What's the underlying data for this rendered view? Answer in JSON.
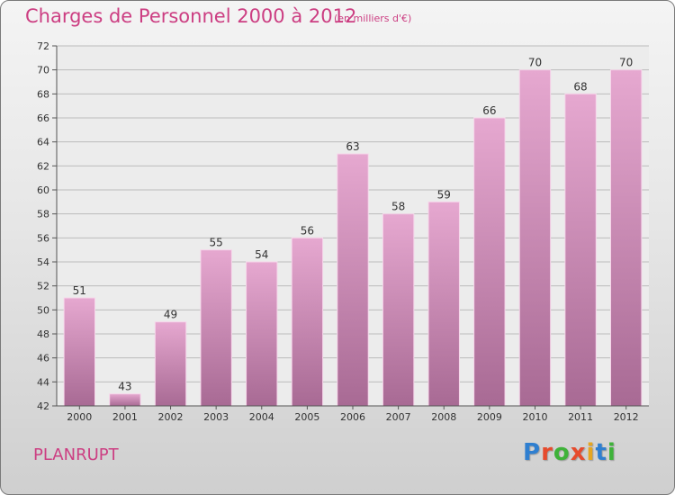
{
  "title": "Charges de Personnel 2000 à 2012",
  "unit_note": "(en milliers d'€)",
  "commune": "PLANRUPT",
  "logo": {
    "text": "Proxiti",
    "letter_colors": [
      "#2f7fd0",
      "#e64b2d",
      "#3fb23a",
      "#e64b2d",
      "#e6a620",
      "#2f7fd0",
      "#3fb23a"
    ]
  },
  "colors": {
    "bar_top": "#e6a8d0",
    "bar_bottom": "#a86a94",
    "accent": "#cc3e82",
    "grid": "#bbbbbb"
  },
  "chart_data": {
    "type": "bar",
    "categories": [
      "2000",
      "2001",
      "2002",
      "2003",
      "2004",
      "2005",
      "2006",
      "2007",
      "2008",
      "2009",
      "2010",
      "2011",
      "2012"
    ],
    "values": [
      51,
      43,
      49,
      55,
      54,
      56,
      63,
      58,
      59,
      66,
      70,
      68,
      70
    ],
    "ylim": [
      42,
      72
    ],
    "yticks": [
      42,
      44,
      46,
      48,
      50,
      52,
      54,
      56,
      58,
      60,
      62,
      64,
      66,
      68,
      70,
      72
    ],
    "grid": true,
    "data_labels": true
  }
}
